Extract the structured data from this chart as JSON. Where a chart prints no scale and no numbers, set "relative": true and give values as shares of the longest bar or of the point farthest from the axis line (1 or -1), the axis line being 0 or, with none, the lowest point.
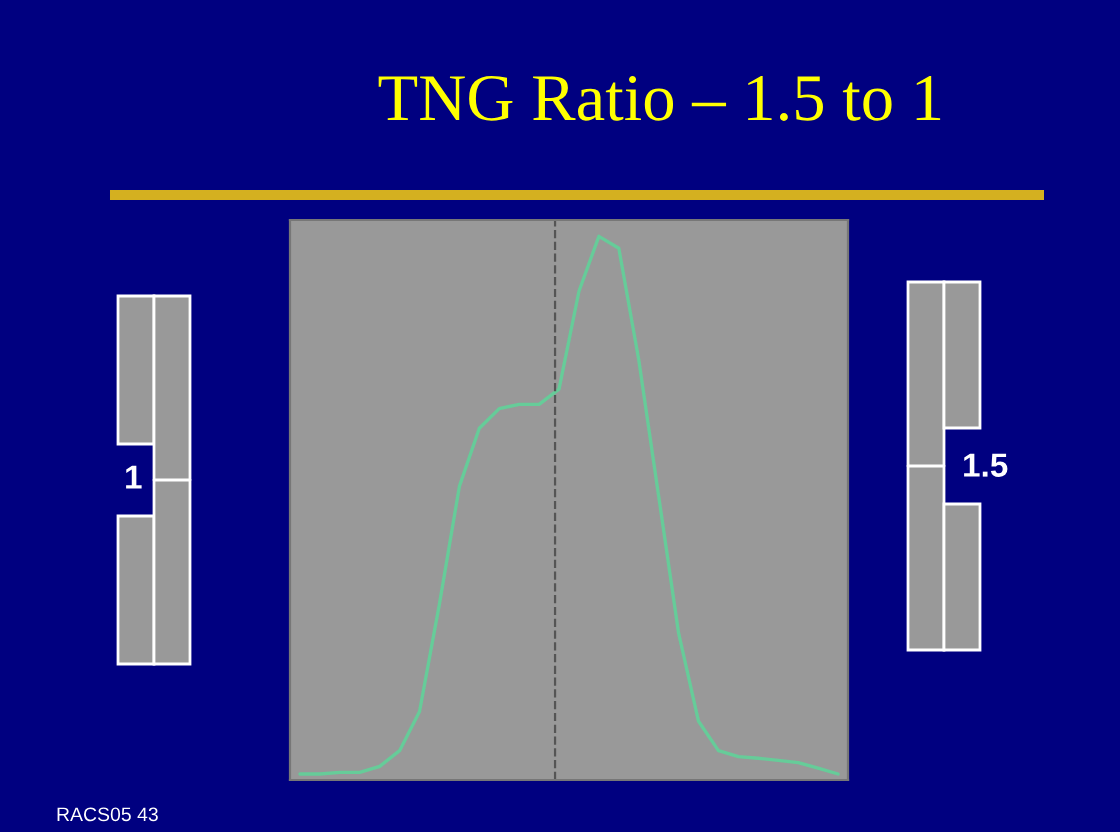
{
  "chart_data": {
    "type": "line",
    "title": "TNG Ratio – 1.5 to 1",
    "relative": true,
    "categories": [
      null,
      null,
      null,
      null,
      null,
      null,
      null,
      null,
      null,
      null,
      null,
      null,
      null,
      null,
      null,
      null,
      null,
      null,
      null,
      null,
      null,
      null,
      null,
      null,
      null,
      null,
      null,
      null
    ],
    "series": [
      {
        "color": "#66cc99",
        "values": [
          0.011,
          0.011,
          0.014,
          0.014,
          0.025,
          0.054,
          0.126,
          0.324,
          0.54,
          0.647,
          0.683,
          0.691,
          0.691,
          0.719,
          0.899,
          1.0,
          0.978,
          0.773,
          0.522,
          0.27,
          0.108,
          0.054,
          0.043,
          0.04,
          0.036,
          0.032,
          0.022,
          0.011
        ]
      }
    ],
    "annotations": [
      "1",
      "1.5",
      "RACS05 43"
    ],
    "legend": false
  }
}
